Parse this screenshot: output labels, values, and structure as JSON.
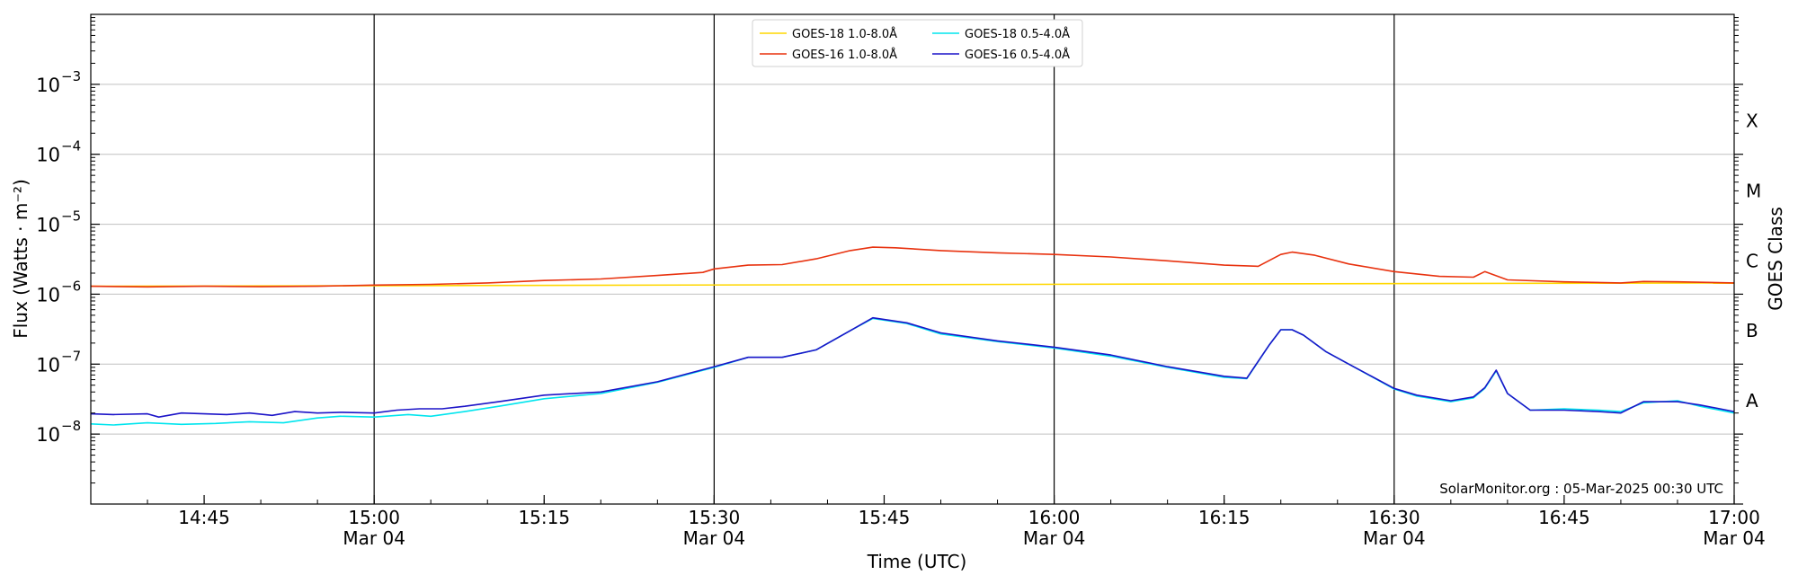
{
  "chart_data": {
    "type": "line",
    "xlabel": "Time (UTC)",
    "ylabel": "Flux (Watts · m⁻²)",
    "right_label": "GOES Class",
    "watermark": "SolarMonitor.org : 05-Mar-2025 00:30 UTC",
    "y_scale": "log",
    "ylim": [
      1e-09,
      0.01
    ],
    "xlim": [
      "14:35",
      "17:00"
    ],
    "grid": "horizontal at decades, vertical at half hours",
    "legend_position": "top-center",
    "y_ticks": [
      {
        "value": 1e-08,
        "label": "10",
        "exp": "−8"
      },
      {
        "value": 1e-07,
        "label": "10",
        "exp": "−7"
      },
      {
        "value": 1e-06,
        "label": "10",
        "exp": "−6"
      },
      {
        "value": 1e-05,
        "label": "10",
        "exp": "−5"
      },
      {
        "value": 0.0001,
        "label": "10",
        "exp": "−4"
      },
      {
        "value": 0.001,
        "label": "10",
        "exp": "−3"
      }
    ],
    "x_ticks": [
      {
        "time": "14:45",
        "label": "14:45",
        "date": ""
      },
      {
        "time": "15:00",
        "label": "15:00",
        "date": "Mar 04"
      },
      {
        "time": "15:15",
        "label": "15:15",
        "date": ""
      },
      {
        "time": "15:30",
        "label": "15:30",
        "date": "Mar 04"
      },
      {
        "time": "15:45",
        "label": "15:45",
        "date": ""
      },
      {
        "time": "16:00",
        "label": "16:00",
        "date": "Mar 04"
      },
      {
        "time": "16:15",
        "label": "16:15",
        "date": ""
      },
      {
        "time": "16:30",
        "label": "16:30",
        "date": "Mar 04"
      },
      {
        "time": "16:45",
        "label": "16:45",
        "date": ""
      },
      {
        "time": "17:00",
        "label": "17:00",
        "date": "Mar 04"
      }
    ],
    "vertical_lines": [
      "15:00",
      "15:30",
      "16:00",
      "16:30"
    ],
    "goes_classes": [
      {
        "label": "A",
        "value": 3e-08
      },
      {
        "label": "B",
        "value": 3e-07
      },
      {
        "label": "C",
        "value": 3e-06
      },
      {
        "label": "M",
        "value": 3e-05
      },
      {
        "label": "X",
        "value": 0.0003
      }
    ],
    "series": [
      {
        "name": "GOES-18 1.0-8.0Å",
        "color": "#ffd700",
        "x": [
          "14:35",
          "17:00"
        ],
        "y": [
          1.3e-06,
          1.45e-06
        ]
      },
      {
        "name": "GOES-16 1.0-8.0Å",
        "color": "#e8320f",
        "x": [
          "14:35",
          "14:40",
          "14:45",
          "14:50",
          "14:55",
          "15:00",
          "15:05",
          "15:10",
          "15:15",
          "15:20",
          "15:25",
          "15:29",
          "15:30",
          "15:33",
          "15:36",
          "15:39",
          "15:42",
          "15:44",
          "15:46",
          "15:50",
          "15:55",
          "16:00",
          "16:05",
          "16:10",
          "16:15",
          "16:18",
          "16:20",
          "16:21",
          "16:23",
          "16:26",
          "16:30",
          "16:34",
          "16:37",
          "16:38",
          "16:40",
          "16:45",
          "16:50",
          "16:52",
          "16:55",
          "17:00"
        ],
        "y": [
          1.3e-06,
          1.27e-06,
          1.3e-06,
          1.28e-06,
          1.3e-06,
          1.35e-06,
          1.38e-06,
          1.45e-06,
          1.57e-06,
          1.65e-06,
          1.85e-06,
          2.05e-06,
          2.3e-06,
          2.6e-06,
          2.65e-06,
          3.2e-06,
          4.2e-06,
          4.7e-06,
          4.6e-06,
          4.2e-06,
          3.9e-06,
          3.7e-06,
          3.4e-06,
          3e-06,
          2.6e-06,
          2.5e-06,
          3.7e-06,
          4e-06,
          3.6e-06,
          2.7e-06,
          2.1e-06,
          1.8e-06,
          1.75e-06,
          2.1e-06,
          1.6e-06,
          1.5e-06,
          1.45e-06,
          1.52e-06,
          1.5e-06,
          1.45e-06
        ]
      },
      {
        "name": "GOES-18 0.5-4.0Å",
        "color": "#00e5ee",
        "x": [
          "14:35",
          "14:37",
          "14:40",
          "14:43",
          "14:46",
          "14:49",
          "14:52",
          "14:55",
          "14:57",
          "15:00",
          "15:03",
          "15:05",
          "15:08",
          "15:11",
          "15:15",
          "15:20",
          "15:25",
          "15:30",
          "15:33",
          "15:36",
          "15:39",
          "15:42",
          "15:44",
          "15:47",
          "15:50",
          "15:55",
          "16:00",
          "16:05",
          "16:10",
          "16:15",
          "16:17",
          "16:19",
          "16:20",
          "16:21",
          "16:22",
          "16:24",
          "16:26",
          "16:30",
          "16:32",
          "16:35",
          "16:37",
          "16:38",
          "16:39",
          "16:40",
          "16:42",
          "16:45",
          "16:48",
          "16:50",
          "16:52",
          "16:55",
          "16:57",
          "17:00"
        ],
        "y": [
          1.4e-08,
          1.35e-08,
          1.45e-08,
          1.38e-08,
          1.42e-08,
          1.5e-08,
          1.45e-08,
          1.7e-08,
          1.8e-08,
          1.75e-08,
          1.9e-08,
          1.8e-08,
          2.1e-08,
          2.5e-08,
          3.2e-08,
          3.8e-08,
          5.5e-08,
          9e-08,
          1.25e-07,
          1.25e-07,
          1.6e-07,
          3e-07,
          4.5e-07,
          3.8e-07,
          2.7e-07,
          2.1e-07,
          1.7e-07,
          1.3e-07,
          9e-08,
          6.5e-08,
          6.2e-08,
          1.9e-07,
          3.1e-07,
          3.1e-07,
          2.6e-07,
          1.5e-07,
          1e-07,
          4.4e-08,
          3.5e-08,
          2.9e-08,
          3.3e-08,
          4.5e-08,
          8e-08,
          3.8e-08,
          2.2e-08,
          2.3e-08,
          2.2e-08,
          2.1e-08,
          2.8e-08,
          3e-08,
          2.5e-08,
          2e-08
        ]
      },
      {
        "name": "GOES-16 0.5-4.0Å",
        "color": "#1c14c8",
        "x": [
          "14:35",
          "14:37",
          "14:40",
          "14:41",
          "14:43",
          "14:45",
          "14:47",
          "14:49",
          "14:51",
          "14:53",
          "14:55",
          "14:57",
          "15:00",
          "15:02",
          "15:04",
          "15:06",
          "15:08",
          "15:11",
          "15:15",
          "15:20",
          "15:25",
          "15:30",
          "15:33",
          "15:36",
          "15:39",
          "15:42",
          "15:44",
          "15:47",
          "15:50",
          "15:55",
          "16:00",
          "16:05",
          "16:10",
          "16:15",
          "16:17",
          "16:19",
          "16:20",
          "16:21",
          "16:22",
          "16:24",
          "16:26",
          "16:30",
          "16:32",
          "16:35",
          "16:37",
          "16:38",
          "16:39",
          "16:40",
          "16:42",
          "16:45",
          "16:48",
          "16:50",
          "16:52",
          "16:55",
          "16:57",
          "17:00"
        ],
        "y": [
          1.95e-08,
          1.9e-08,
          1.95e-08,
          1.75e-08,
          2e-08,
          1.95e-08,
          1.9e-08,
          2e-08,
          1.85e-08,
          2.1e-08,
          2e-08,
          2.05e-08,
          2e-08,
          2.2e-08,
          2.3e-08,
          2.3e-08,
          2.5e-08,
          2.9e-08,
          3.6e-08,
          4e-08,
          5.6e-08,
          9.2e-08,
          1.25e-07,
          1.25e-07,
          1.6e-07,
          3e-07,
          4.6e-07,
          3.9e-07,
          2.8e-07,
          2.15e-07,
          1.75e-07,
          1.35e-07,
          9.2e-08,
          6.7e-08,
          6.3e-08,
          1.9e-07,
          3.1e-07,
          3.1e-07,
          2.6e-07,
          1.5e-07,
          1e-07,
          4.5e-08,
          3.6e-08,
          3e-08,
          3.4e-08,
          4.6e-08,
          8.2e-08,
          3.8e-08,
          2.2e-08,
          2.2e-08,
          2.1e-08,
          2e-08,
          2.9e-08,
          2.9e-08,
          2.6e-08,
          2.1e-08
        ]
      }
    ]
  }
}
